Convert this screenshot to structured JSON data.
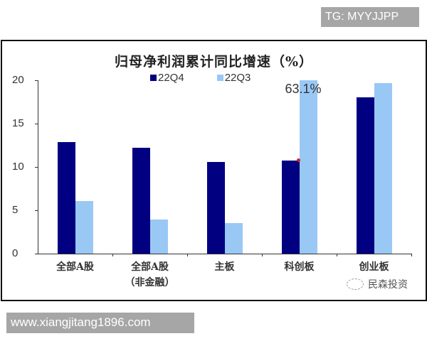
{
  "tags": {
    "top": "TG: MYYJJPP",
    "bottom": "www.xiangjitang1896.com"
  },
  "watermark": "民森投资",
  "chart_data": {
    "type": "bar",
    "title": "归母净利润累计同比增速（%）",
    "xlabel": "",
    "ylabel": "",
    "ylim": [
      0,
      20
    ],
    "yticks": [
      0,
      5,
      10,
      15,
      20
    ],
    "grid": false,
    "legend_position": "top",
    "categories": [
      "全部A股",
      "全部A股（非金融）",
      "主板",
      "科创板",
      "创业板"
    ],
    "category_lines": [
      [
        "全部A股"
      ],
      [
        "全部A股",
        "（非金融）"
      ],
      [
        "主板"
      ],
      [
        "科创板"
      ],
      [
        "创业板"
      ]
    ],
    "series": [
      {
        "name": "22Q4",
        "color": "#000080",
        "values": [
          12.9,
          12.2,
          10.6,
          10.7,
          18.0
        ]
      },
      {
        "name": "22Q3",
        "color": "#99c8f5",
        "values": [
          6.1,
          3.9,
          3.5,
          63.1,
          19.7
        ]
      }
    ],
    "annotations": [
      {
        "text": "63.1%",
        "category": "科创板",
        "series": "22Q3",
        "note": "bar truncated at axis max 20"
      }
    ]
  }
}
